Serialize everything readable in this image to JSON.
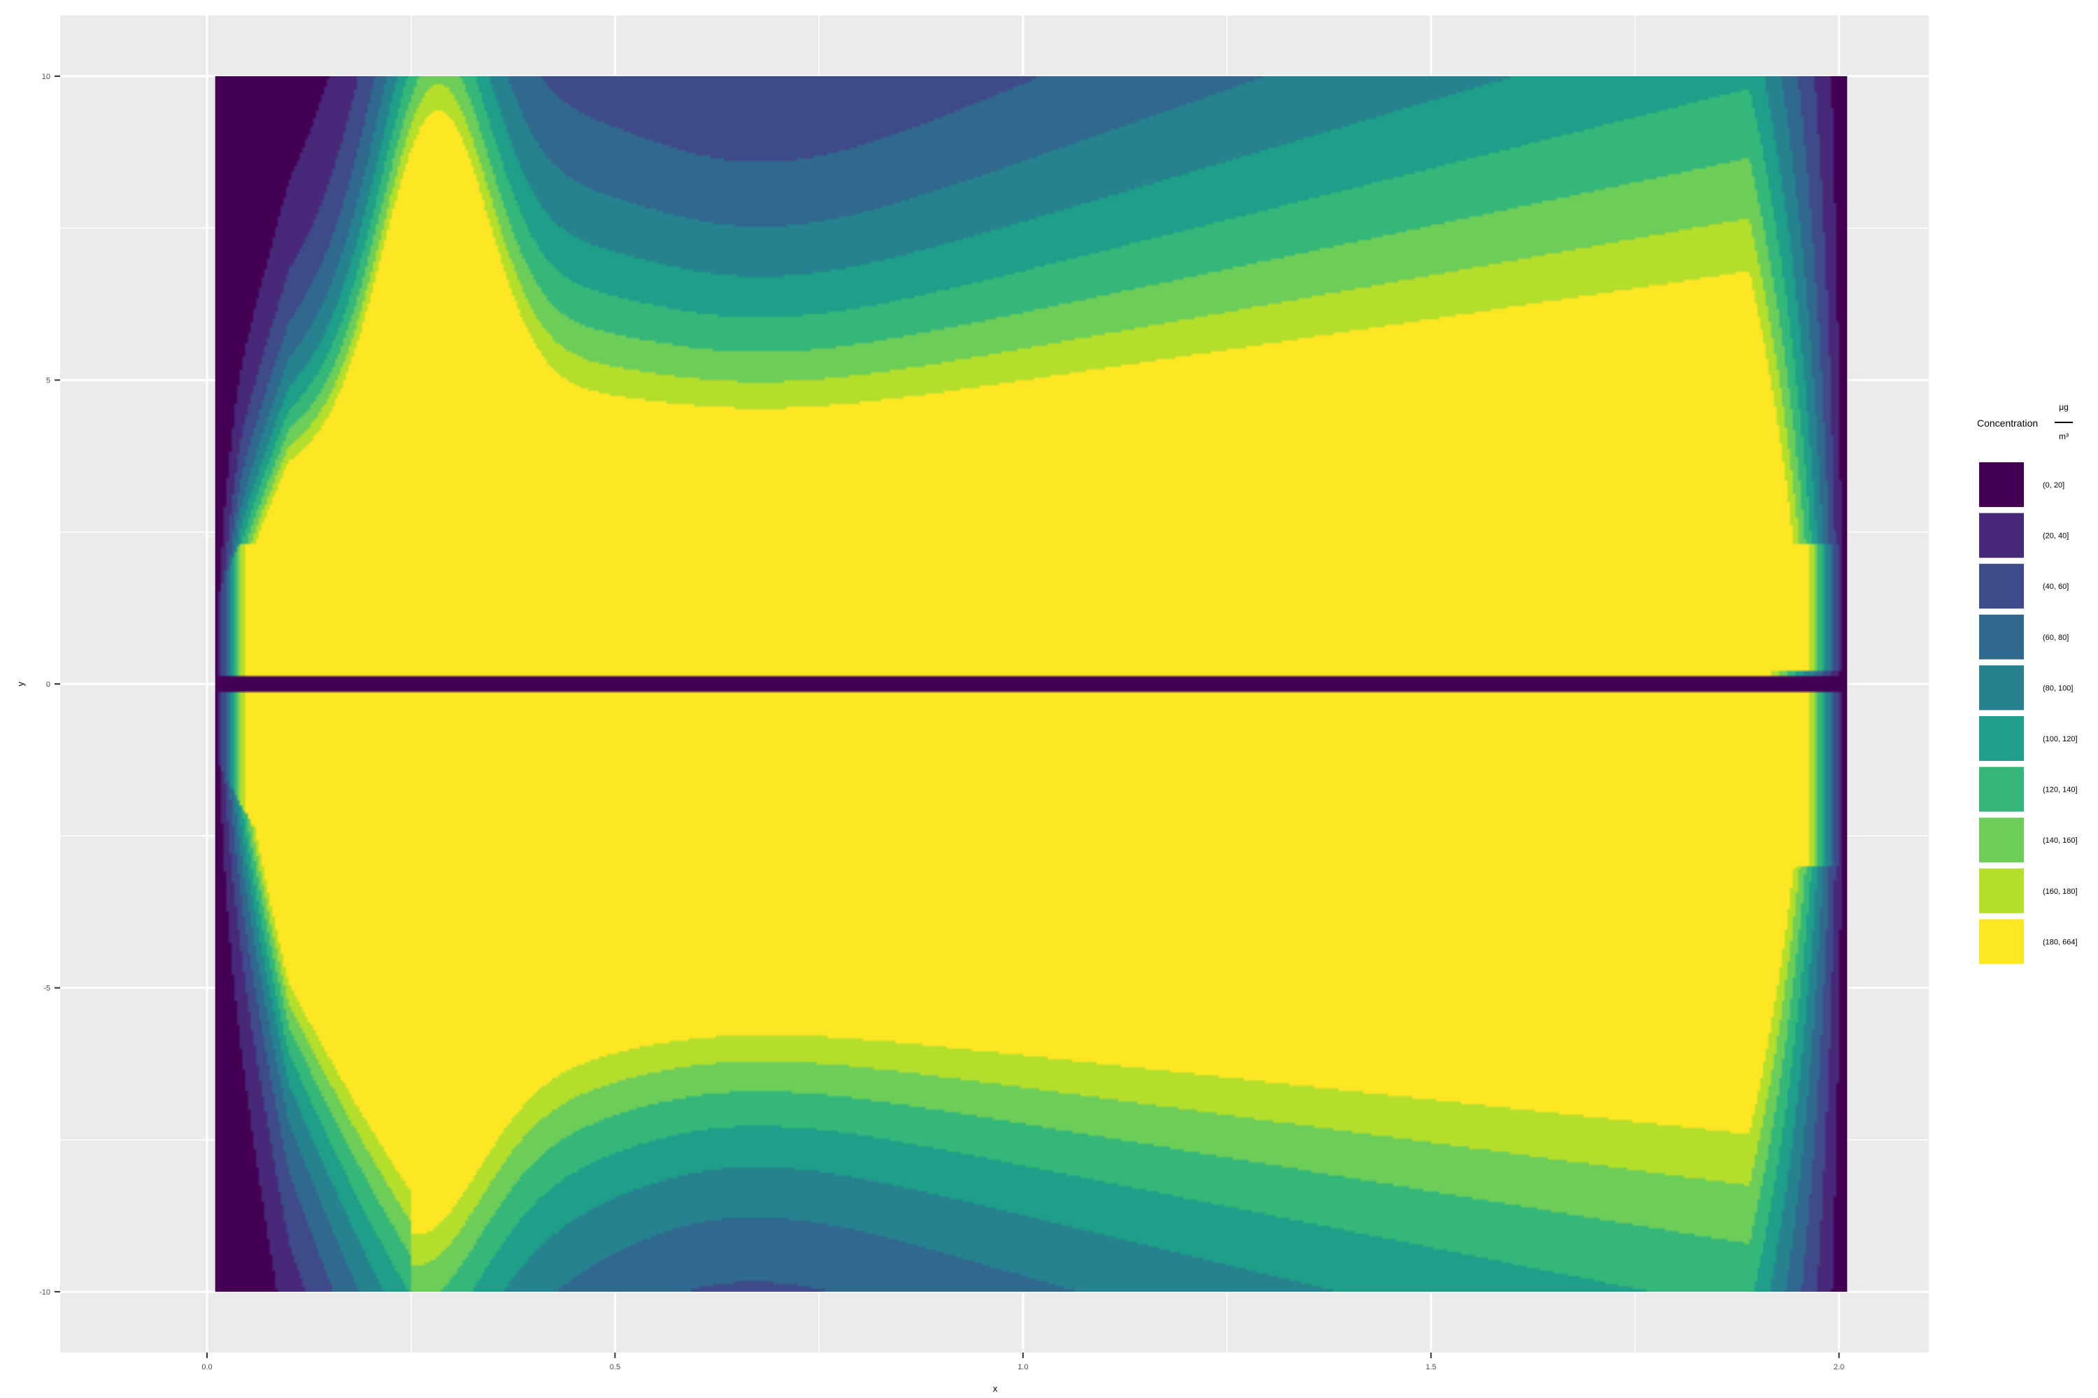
{
  "chart_data": {
    "type": "contour-filled",
    "xlabel": "x",
    "ylabel": "y",
    "xlim": [
      -0.18,
      2.11
    ],
    "ylim": [
      -11,
      11
    ],
    "x_ticks": [
      0.0,
      0.5,
      1.0,
      1.5,
      2.0
    ],
    "x_tick_labels": [
      "0.0",
      "0.5",
      "1.0",
      "1.5",
      "2.0"
    ],
    "y_ticks": [
      -10,
      -5,
      0,
      5,
      10
    ],
    "y_tick_labels": [
      "-10",
      "-5",
      "0",
      "5",
      "10"
    ],
    "grid": true,
    "legend": {
      "title": "Concentration",
      "unit_numerator": "μg",
      "unit_denominator": "m³",
      "placement": "right",
      "bins": [
        {
          "label": "(0, 20]",
          "range": [
            0,
            20
          ],
          "color": "#440154"
        },
        {
          "label": "(20, 40]",
          "range": [
            20,
            40
          ],
          "color": "#482878"
        },
        {
          "label": "(40, 60]",
          "range": [
            40,
            60
          ],
          "color": "#3E4A89"
        },
        {
          "label": "(60, 80]",
          "range": [
            60,
            80
          ],
          "color": "#31688E"
        },
        {
          "label": "(80, 100]",
          "range": [
            80,
            100
          ],
          "color": "#26828E"
        },
        {
          "label": "(100, 120]",
          "range": [
            100,
            120
          ],
          "color": "#1F9E89"
        },
        {
          "label": "(120, 140]",
          "range": [
            120,
            140
          ],
          "color": "#35B779"
        },
        {
          "label": "(140, 160]",
          "range": [
            140,
            160
          ],
          "color": "#6DCD59"
        },
        {
          "label": "(160, 180]",
          "range": [
            160,
            180
          ],
          "color": "#B4DE2C"
        },
        {
          "label": "(180, 664]",
          "range": [
            180,
            664
          ],
          "color": "#FDE725"
        }
      ]
    },
    "field_extent": {
      "x": [
        0.01,
        2.01
      ],
      "y": [
        -10,
        10
      ]
    }
  }
}
